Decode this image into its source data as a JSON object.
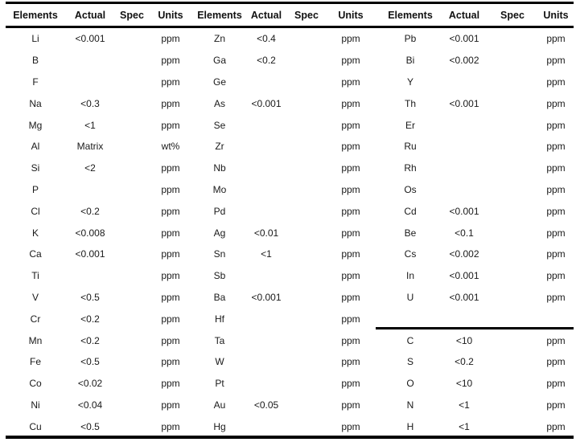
{
  "header": {
    "elements": "Elements",
    "actual": "Actual",
    "spec": "Spec",
    "units": "Units"
  },
  "colors": {
    "background": "#ffffff",
    "rule": "#000000",
    "text": "#1a1a1a"
  },
  "groups": [
    {
      "rows": [
        {
          "el": "Li",
          "actual": "<0.001",
          "spec": "",
          "units": "ppm"
        },
        {
          "el": "B",
          "actual": "",
          "spec": "",
          "units": "ppm"
        },
        {
          "el": "F",
          "actual": "",
          "spec": "",
          "units": "ppm"
        },
        {
          "el": "Na",
          "actual": "<0.3",
          "spec": "",
          "units": "ppm"
        },
        {
          "el": "Mg",
          "actual": "<1",
          "spec": "",
          "units": "ppm"
        },
        {
          "el": "Al",
          "actual": "Matrix",
          "spec": "",
          "units": "wt%"
        },
        {
          "el": "Si",
          "actual": "<2",
          "spec": "",
          "units": "ppm"
        },
        {
          "el": "P",
          "actual": "",
          "spec": "",
          "units": "ppm"
        },
        {
          "el": "Cl",
          "actual": "<0.2",
          "spec": "",
          "units": "ppm"
        },
        {
          "el": "K",
          "actual": "<0.008",
          "spec": "",
          "units": "ppm"
        },
        {
          "el": "Ca",
          "actual": "<0.001",
          "spec": "",
          "units": "ppm"
        },
        {
          "el": "Ti",
          "actual": "",
          "spec": "",
          "units": "ppm"
        },
        {
          "el": "V",
          "actual": "<0.5",
          "spec": "",
          "units": "ppm"
        },
        {
          "el": "Cr",
          "actual": "<0.2",
          "spec": "",
          "units": "ppm"
        },
        {
          "el": "Mn",
          "actual": "<0.2",
          "spec": "",
          "units": "ppm"
        },
        {
          "el": "Fe",
          "actual": "<0.5",
          "spec": "",
          "units": "ppm"
        },
        {
          "el": "Co",
          "actual": "<0.02",
          "spec": "",
          "units": "ppm"
        },
        {
          "el": "Ni",
          "actual": "<0.04",
          "spec": "",
          "units": "ppm"
        },
        {
          "el": "Cu",
          "actual": "<0.5",
          "spec": "",
          "units": "ppm"
        }
      ]
    },
    {
      "rows": [
        {
          "el": "Zn",
          "actual": "<0.4",
          "spec": "",
          "units": "ppm"
        },
        {
          "el": "Ga",
          "actual": "<0.2",
          "spec": "",
          "units": "ppm"
        },
        {
          "el": "Ge",
          "actual": "",
          "spec": "",
          "units": "ppm"
        },
        {
          "el": "As",
          "actual": "<0.001",
          "spec": "",
          "units": "ppm"
        },
        {
          "el": "Se",
          "actual": "",
          "spec": "",
          "units": "ppm"
        },
        {
          "el": "Zr",
          "actual": "",
          "spec": "",
          "units": "ppm"
        },
        {
          "el": "Nb",
          "actual": "",
          "spec": "",
          "units": "ppm"
        },
        {
          "el": "Mo",
          "actual": "",
          "spec": "",
          "units": "ppm"
        },
        {
          "el": "Pd",
          "actual": "",
          "spec": "",
          "units": "ppm"
        },
        {
          "el": "Ag",
          "actual": "<0.01",
          "spec": "",
          "units": "ppm"
        },
        {
          "el": "Sn",
          "actual": "<1",
          "spec": "",
          "units": "ppm"
        },
        {
          "el": "Sb",
          "actual": "",
          "spec": "",
          "units": "ppm"
        },
        {
          "el": "Ba",
          "actual": "<0.001",
          "spec": "",
          "units": "ppm"
        },
        {
          "el": "Hf",
          "actual": "",
          "spec": "",
          "units": "ppm"
        },
        {
          "el": "Ta",
          "actual": "",
          "spec": "",
          "units": "ppm"
        },
        {
          "el": "W",
          "actual": "",
          "spec": "",
          "units": "ppm"
        },
        {
          "el": "Pt",
          "actual": "",
          "spec": "",
          "units": "ppm"
        },
        {
          "el": "Au",
          "actual": "<0.05",
          "spec": "",
          "units": "ppm"
        },
        {
          "el": "Hg",
          "actual": "",
          "spec": "",
          "units": "ppm"
        }
      ]
    },
    {
      "rows": [
        {
          "el": "Pb",
          "actual": "<0.001",
          "spec": "",
          "units": "ppm"
        },
        {
          "el": "Bi",
          "actual": "<0.002",
          "spec": "",
          "units": "ppm"
        },
        {
          "el": "Y",
          "actual": "",
          "spec": "",
          "units": "ppm"
        },
        {
          "el": "Th",
          "actual": "<0.001",
          "spec": "",
          "units": "ppm"
        },
        {
          "el": "Er",
          "actual": "",
          "spec": "",
          "units": "ppm"
        },
        {
          "el": "Ru",
          "actual": "",
          "spec": "",
          "units": "ppm"
        },
        {
          "el": "Rh",
          "actual": "",
          "spec": "",
          "units": "ppm"
        },
        {
          "el": "Os",
          "actual": "",
          "spec": "",
          "units": "ppm"
        },
        {
          "el": "Cd",
          "actual": "<0.001",
          "spec": "",
          "units": "ppm"
        },
        {
          "el": "Be",
          "actual": "<0.1",
          "spec": "",
          "units": "ppm"
        },
        {
          "el": "Cs",
          "actual": "<0.002",
          "spec": "",
          "units": "ppm"
        },
        {
          "el": "In",
          "actual": "<0.001",
          "spec": "",
          "units": "ppm"
        },
        {
          "el": "U",
          "actual": "<0.001",
          "spec": "",
          "units": "ppm"
        },
        {
          "el": "",
          "actual": "",
          "spec": "",
          "units": ""
        },
        {
          "el": "C",
          "actual": "<10",
          "spec": "",
          "units": "ppm"
        },
        {
          "el": "S",
          "actual": "<0.2",
          "spec": "",
          "units": "ppm"
        },
        {
          "el": "O",
          "actual": "<10",
          "spec": "",
          "units": "ppm"
        },
        {
          "el": "N",
          "actual": "<1",
          "spec": "",
          "units": "ppm"
        },
        {
          "el": "H",
          "actual": "<1",
          "spec": "",
          "units": "ppm"
        }
      ]
    }
  ]
}
